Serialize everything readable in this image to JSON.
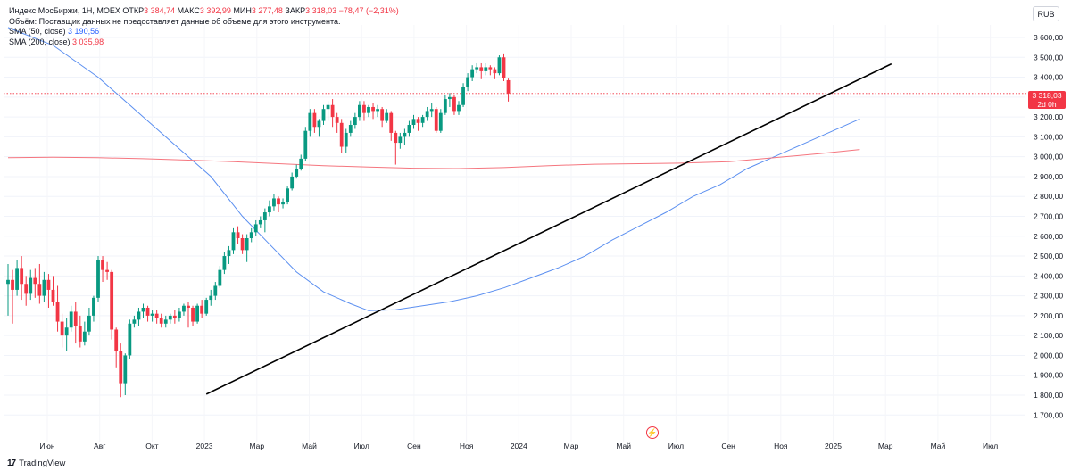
{
  "legend": {
    "instrument": "Индекс МосБиржи, 1Н, MOEX",
    "open_label": "ОТКР",
    "open_value": "3 384,74",
    "high_label": "МАКС",
    "high_value": "3 392,99",
    "low_label": "МИН",
    "low_value": "3 277,48",
    "close_label": "ЗАКР",
    "close_value": "3 318,03",
    "change": "−78,47 (−2,31%)",
    "volume_note": "Объём: Поставщик данных не предоставляет данные об объеме для этого инструмента.",
    "sma50_label": "SMA (50, close)",
    "sma50_value": "3 190,56",
    "sma200_label": "SMA (200, close)",
    "sma200_value": "3 035,98"
  },
  "currency": "RUB",
  "last_price": {
    "value": "3 318,03",
    "countdown": "2d 0h"
  },
  "branding": "TradingView",
  "colors": {
    "up": "#089981",
    "down": "#f23645",
    "sma50": "#5b8ff0",
    "sma200": "#f5767f",
    "trendline": "#000000"
  },
  "chart_data": {
    "type": "candlestick",
    "x_tick_labels": [
      "Июн",
      "Авг",
      "Окт",
      "2023",
      "Мар",
      "Май",
      "Июл",
      "Сен",
      "Ноя",
      "2024",
      "Мар",
      "Май",
      "Июл",
      "Сен",
      "Ноя",
      "2025",
      "Мар",
      "Май",
      "Июл"
    ],
    "y_tick_labels": [
      "3 600,00",
      "3 500,00",
      "3 400,00",
      "3 300,00",
      "3 200,00",
      "3 100,00",
      "3 000,00",
      "2 900,00",
      "2 800,00",
      "2 700,00",
      "2 600,00",
      "2 500,00",
      "2 400,00",
      "2 300,00",
      "2 200,00",
      "2 100,00",
      "2 000,00",
      "1 900,00",
      "1 800,00",
      "1 700,00"
    ],
    "y_ticks": [
      3600,
      3500,
      3400,
      3300,
      3200,
      3100,
      3000,
      2900,
      2800,
      2700,
      2600,
      2500,
      2400,
      2300,
      2200,
      2100,
      2000,
      1900,
      1800,
      1700
    ],
    "ylim": [
      1670,
      3650
    ],
    "x_range": [
      0,
      189
    ],
    "candles": [
      [
        2360,
        2460,
        2380,
        2200
      ],
      [
        2380,
        2430,
        2330,
        2160
      ],
      [
        2330,
        2480,
        2440,
        2300
      ],
      [
        2440,
        2500,
        2360,
        2280
      ],
      [
        2360,
        2400,
        2310,
        2250
      ],
      [
        2310,
        2430,
        2390,
        2280
      ],
      [
        2390,
        2440,
        2360,
        2290
      ],
      [
        2360,
        2460,
        2300,
        2260
      ],
      [
        2300,
        2420,
        2380,
        2270
      ],
      [
        2380,
        2410,
        2330,
        2240
      ],
      [
        2330,
        2400,
        2270,
        2250
      ],
      [
        2270,
        2350,
        2170,
        2120
      ],
      [
        2170,
        2210,
        2100,
        2040
      ],
      [
        2100,
        2190,
        2140,
        2020
      ],
      [
        2140,
        2250,
        2220,
        2120
      ],
      [
        2220,
        2270,
        2150,
        2060
      ],
      [
        2150,
        2200,
        2070,
        2040
      ],
      [
        2070,
        2170,
        2120,
        2050
      ],
      [
        2120,
        2240,
        2200,
        2100
      ],
      [
        2200,
        2300,
        2290,
        2170
      ],
      [
        2290,
        2500,
        2480,
        2270
      ],
      [
        2480,
        2500,
        2430,
        2370
      ],
      [
        2430,
        2470,
        2420,
        2380
      ],
      [
        2420,
        2430,
        2130,
        2080
      ],
      [
        2130,
        2140,
        2020,
        1940
      ],
      [
        2020,
        2060,
        1860,
        1790
      ],
      [
        1860,
        2010,
        2000,
        1800
      ],
      [
        2000,
        2180,
        2160,
        1980
      ],
      [
        2160,
        2200,
        2180,
        2140
      ],
      [
        2180,
        2240,
        2220,
        2150
      ],
      [
        2220,
        2260,
        2240,
        2190
      ],
      [
        2240,
        2250,
        2200,
        2170
      ],
      [
        2200,
        2230,
        2210,
        2170
      ],
      [
        2210,
        2230,
        2190,
        2160
      ],
      [
        2190,
        2210,
        2160,
        2140
      ],
      [
        2160,
        2200,
        2180,
        2140
      ],
      [
        2180,
        2210,
        2200,
        2160
      ],
      [
        2200,
        2230,
        2190,
        2160
      ],
      [
        2190,
        2240,
        2220,
        2170
      ],
      [
        2220,
        2260,
        2250,
        2200
      ],
      [
        2250,
        2270,
        2240,
        2140
      ],
      [
        2240,
        2250,
        2170,
        2150
      ],
      [
        2170,
        2260,
        2250,
        2160
      ],
      [
        2250,
        2280,
        2210,
        2190
      ],
      [
        2210,
        2290,
        2280,
        2200
      ],
      [
        2280,
        2330,
        2300,
        2250
      ],
      [
        2300,
        2370,
        2350,
        2280
      ],
      [
        2350,
        2450,
        2430,
        2340
      ],
      [
        2430,
        2520,
        2500,
        2410
      ],
      [
        2500,
        2550,
        2530,
        2460
      ],
      [
        2530,
        2640,
        2620,
        2510
      ],
      [
        2620,
        2650,
        2590,
        2560
      ],
      [
        2590,
        2610,
        2530,
        2510
      ],
      [
        2530,
        2610,
        2590,
        2470
      ],
      [
        2590,
        2640,
        2620,
        2570
      ],
      [
        2620,
        2680,
        2660,
        2600
      ],
      [
        2660,
        2700,
        2680,
        2640
      ],
      [
        2680,
        2740,
        2720,
        2620
      ],
      [
        2720,
        2780,
        2750,
        2700
      ],
      [
        2750,
        2810,
        2790,
        2730
      ],
      [
        2790,
        2800,
        2760,
        2720
      ],
      [
        2760,
        2790,
        2770,
        2740
      ],
      [
        2770,
        2850,
        2840,
        2760
      ],
      [
        2840,
        2920,
        2900,
        2830
      ],
      [
        2900,
        2960,
        2940,
        2890
      ],
      [
        2940,
        3010,
        2990,
        2930
      ],
      [
        2990,
        3150,
        3130,
        2980
      ],
      [
        3130,
        3240,
        3220,
        3100
      ],
      [
        3220,
        3240,
        3150,
        3120
      ],
      [
        3150,
        3190,
        3180,
        3100
      ],
      [
        3180,
        3260,
        3240,
        3160
      ],
      [
        3240,
        3280,
        3260,
        3180
      ],
      [
        3260,
        3290,
        3200,
        3150
      ],
      [
        3200,
        3220,
        3170,
        3120
      ],
      [
        3170,
        3190,
        3050,
        3020
      ],
      [
        3050,
        3140,
        3120,
        3020
      ],
      [
        3120,
        3180,
        3160,
        3100
      ],
      [
        3160,
        3220,
        3200,
        3140
      ],
      [
        3200,
        3280,
        3260,
        3180
      ],
      [
        3260,
        3280,
        3220,
        3180
      ],
      [
        3220,
        3260,
        3250,
        3200
      ],
      [
        3250,
        3270,
        3230,
        3190
      ],
      [
        3230,
        3260,
        3240,
        3200
      ],
      [
        3240,
        3250,
        3180,
        3150
      ],
      [
        3180,
        3240,
        3220,
        3170
      ],
      [
        3220,
        3230,
        3120,
        3080
      ],
      [
        3120,
        3130,
        3070,
        2960
      ],
      [
        3070,
        3120,
        3100,
        3040
      ],
      [
        3100,
        3140,
        3120,
        3060
      ],
      [
        3120,
        3180,
        3160,
        3100
      ],
      [
        3160,
        3210,
        3190,
        3140
      ],
      [
        3190,
        3200,
        3170,
        3130
      ],
      [
        3170,
        3210,
        3200,
        3150
      ],
      [
        3200,
        3250,
        3230,
        3180
      ],
      [
        3230,
        3270,
        3240,
        3200
      ],
      [
        3240,
        3250,
        3130,
        3120
      ],
      [
        3130,
        3240,
        3220,
        3120
      ],
      [
        3220,
        3310,
        3290,
        3210
      ],
      [
        3290,
        3320,
        3300,
        3250
      ],
      [
        3300,
        3310,
        3230,
        3210
      ],
      [
        3230,
        3280,
        3260,
        3210
      ],
      [
        3260,
        3370,
        3350,
        3250
      ],
      [
        3350,
        3420,
        3400,
        3330
      ],
      [
        3400,
        3460,
        3440,
        3380
      ],
      [
        3440,
        3470,
        3450,
        3420
      ],
      [
        3450,
        3470,
        3430,
        3390
      ],
      [
        3430,
        3470,
        3450,
        3410
      ],
      [
        3450,
        3460,
        3440,
        3410
      ],
      [
        3440,
        3450,
        3420,
        3390
      ],
      [
        3420,
        3510,
        3500,
        3410
      ],
      [
        3500,
        3520,
        3397,
        3380
      ],
      [
        3384.74,
        3392.99,
        3318.03,
        3277.48
      ]
    ],
    "series": [
      {
        "name": "SMA (50, close)",
        "points": [
          [
            0,
            3650
          ],
          [
            10,
            3560
          ],
          [
            20,
            3400
          ],
          [
            30,
            3200
          ],
          [
            40,
            3000
          ],
          [
            45,
            2900
          ],
          [
            52,
            2700
          ],
          [
            58,
            2560
          ],
          [
            64,
            2420
          ],
          [
            70,
            2320
          ],
          [
            76,
            2260
          ],
          [
            80,
            2225
          ],
          [
            86,
            2230
          ],
          [
            92,
            2250
          ],
          [
            98,
            2270
          ],
          [
            104,
            2300
          ],
          [
            110,
            2340
          ],
          [
            116,
            2390
          ],
          [
            122,
            2440
          ],
          [
            128,
            2500
          ],
          [
            134,
            2580
          ],
          [
            140,
            2650
          ],
          [
            146,
            2720
          ],
          [
            152,
            2800
          ],
          [
            158,
            2860
          ],
          [
            164,
            2940
          ],
          [
            170,
            3000
          ],
          [
            176,
            3060
          ],
          [
            182,
            3120
          ],
          [
            188,
            3180
          ],
          [
            189,
            3190
          ]
        ]
      },
      {
        "name": "SMA (200, close)",
        "points": [
          [
            0,
            2995
          ],
          [
            10,
            2997
          ],
          [
            20,
            2995
          ],
          [
            30,
            2990
          ],
          [
            40,
            2983
          ],
          [
            50,
            2975
          ],
          [
            60,
            2965
          ],
          [
            70,
            2955
          ],
          [
            80,
            2948
          ],
          [
            90,
            2942
          ],
          [
            100,
            2940
          ],
          [
            110,
            2945
          ],
          [
            120,
            2955
          ],
          [
            130,
            2962
          ],
          [
            140,
            2965
          ],
          [
            150,
            2968
          ],
          [
            160,
            2975
          ],
          [
            170,
            2995
          ],
          [
            180,
            3015
          ],
          [
            189,
            3036
          ]
        ]
      }
    ],
    "trendline": [
      [
        44,
        1805
      ],
      [
        196,
        3467
      ]
    ],
    "last_close": 3318.03
  }
}
